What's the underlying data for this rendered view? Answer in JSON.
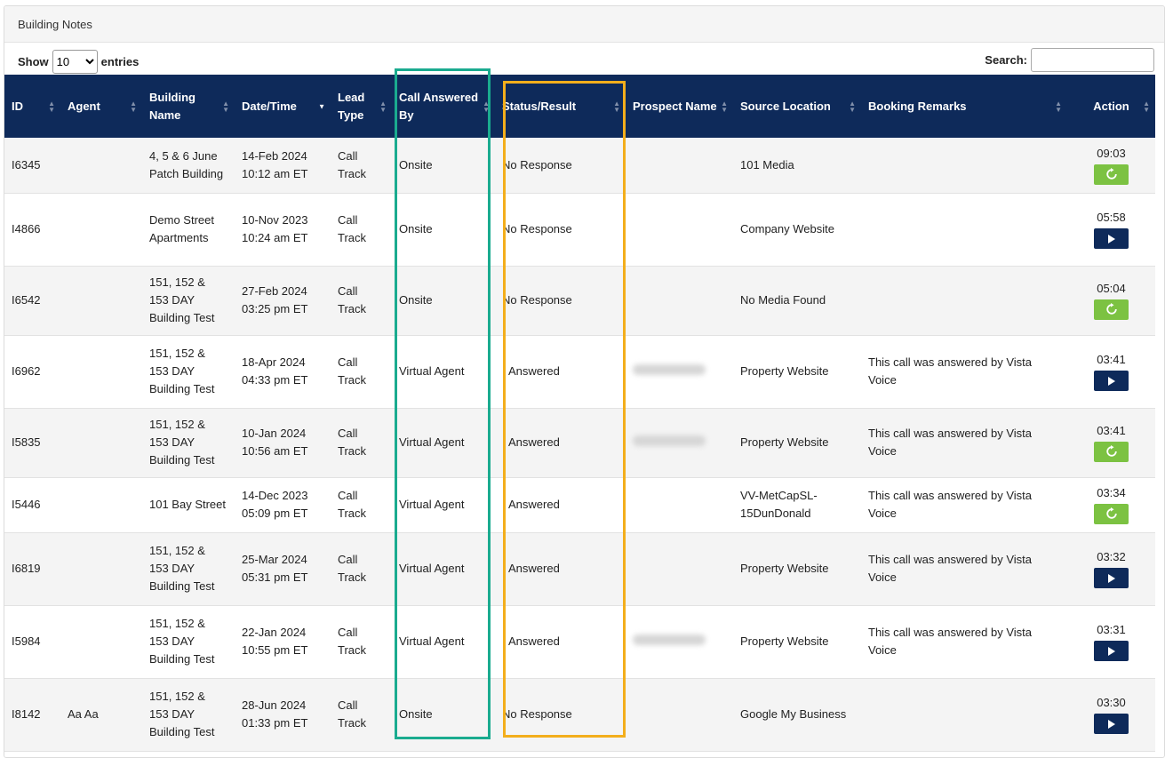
{
  "panel": {
    "title": "Building Notes"
  },
  "controls": {
    "show_label": "Show",
    "entries_label": "entries",
    "page_size": "10",
    "search_label": "Search:",
    "search_value": ""
  },
  "columns": [
    {
      "label": "ID",
      "sort": "both"
    },
    {
      "label": "Agent",
      "sort": "both"
    },
    {
      "label": "Building Name",
      "sort": "both"
    },
    {
      "label": "Date/Time",
      "sort": "desc"
    },
    {
      "label": "Lead Type",
      "sort": "both"
    },
    {
      "label": "Call Answered By",
      "sort": "both"
    },
    {
      "label": "Status/Result",
      "sort": "both"
    },
    {
      "label": "Prospect Name",
      "sort": "both"
    },
    {
      "label": "Source Location",
      "sort": "both"
    },
    {
      "label": "Booking Remarks",
      "sort": "both"
    },
    {
      "label": "Action",
      "sort": "both"
    }
  ],
  "rows": [
    {
      "id": "I6345",
      "agent": "",
      "building": "4, 5 & 6 June Patch Building",
      "date": "14-Feb 2024",
      "time": "10:12 am ET",
      "lead_type": "Call Track",
      "answered_by": "Onsite",
      "status": "No Response",
      "prospect_blurred": false,
      "source": "101 Media",
      "remarks": "",
      "duration": "09:03",
      "action_icon": "refresh-icon"
    },
    {
      "id": "I4866",
      "agent": "",
      "building": "Demo Street Apartments",
      "date": "10-Nov 2023",
      "time": "10:24 am ET",
      "lead_type": "Call Track",
      "answered_by": "Onsite",
      "status": "No Response",
      "prospect_blurred": false,
      "source": "Company Website",
      "remarks": "",
      "duration": "05:58",
      "action_icon": "play-icon"
    },
    {
      "id": "I6542",
      "agent": "",
      "building": "151, 152 & 153 DAY Building Test",
      "date": "27-Feb 2024",
      "time": "03:25 pm ET",
      "lead_type": "Call Track",
      "answered_by": "Onsite",
      "status": "No Response",
      "prospect_blurred": false,
      "source": "No Media Found",
      "remarks": "",
      "duration": "05:04",
      "action_icon": "refresh-icon"
    },
    {
      "id": "I6962",
      "agent": "",
      "building": "151, 152 & 153 DAY Building Test",
      "date": "18-Apr 2024",
      "time": "04:33 pm ET",
      "lead_type": "Call Track",
      "answered_by": "Virtual Agent",
      "status": "Answered",
      "prospect_blurred": true,
      "source": "Property Website",
      "remarks": "This call was answered by Vista Voice",
      "duration": "03:41",
      "action_icon": "play-icon"
    },
    {
      "id": "I5835",
      "agent": "",
      "building": "151, 152 & 153 DAY Building Test",
      "date": "10-Jan 2024",
      "time": "10:56 am ET",
      "lead_type": "Call Track",
      "answered_by": "Virtual Agent",
      "status": "Answered",
      "prospect_blurred": true,
      "source": "Property Website",
      "remarks": "This call was answered by Vista Voice",
      "duration": "03:41",
      "action_icon": "refresh-icon"
    },
    {
      "id": "I5446",
      "agent": "",
      "building": "101 Bay Street",
      "date": "14-Dec 2023",
      "time": "05:09 pm ET",
      "lead_type": "Call Track",
      "answered_by": "Virtual Agent",
      "status": "Answered",
      "prospect_blurred": false,
      "source": "VV-MetCapSL-15DunDonald",
      "remarks": "This call was answered by Vista Voice",
      "duration": "03:34",
      "action_icon": "refresh-icon"
    },
    {
      "id": "I6819",
      "agent": "",
      "building": "151, 152 & 153 DAY Building Test",
      "date": "25-Mar 2024",
      "time": "05:31 pm ET",
      "lead_type": "Call Track",
      "answered_by": "Virtual Agent",
      "status": "Answered",
      "prospect_blurred": false,
      "source": "Property Website",
      "remarks": "This call was answered by Vista Voice",
      "duration": "03:32",
      "action_icon": "play-icon"
    },
    {
      "id": "I5984",
      "agent": "",
      "building": "151, 152 & 153 DAY Building Test",
      "date": "22-Jan 2024",
      "time": "10:55 pm ET",
      "lead_type": "Call Track",
      "answered_by": "Virtual Agent",
      "status": "Answered",
      "prospect_blurred": true,
      "source": "Property Website",
      "remarks": "This call was answered by Vista Voice",
      "duration": "03:31",
      "action_icon": "play-icon"
    },
    {
      "id": "I8142",
      "agent": "Aa Aa",
      "building": "151, 152 & 153 DAY Building Test",
      "date": "28-Jun 2024",
      "time": "01:33 pm ET",
      "lead_type": "Call Track",
      "answered_by": "Onsite",
      "status": "No Response",
      "prospect_blurred": false,
      "source": "Google My Business",
      "remarks": "",
      "duration": "03:30",
      "action_icon": "play-icon"
    }
  ],
  "highlights": {
    "answered_by_color": "#1aab8f",
    "status_color": "#f3ae1c"
  },
  "theme": {
    "header_bg": "#0e2a5a",
    "play_button": "#0e2a5a",
    "refresh_button": "#7cc242"
  }
}
